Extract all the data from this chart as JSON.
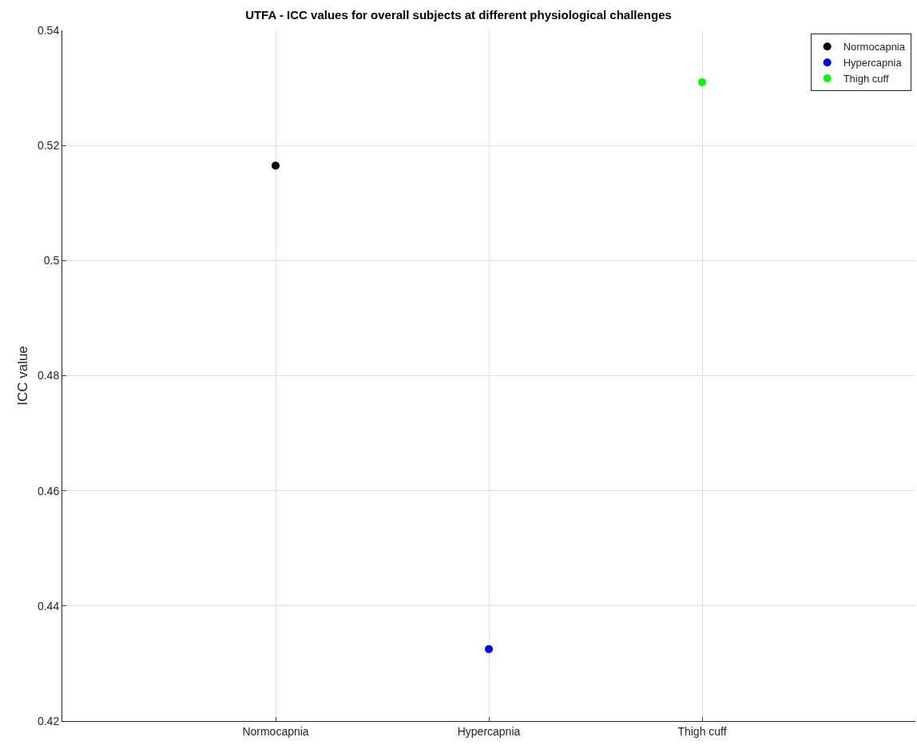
{
  "chart_data": {
    "type": "scatter",
    "title": "UTFA - ICC values for overall subjects at different physiological challenges",
    "ylabel": "ICC value",
    "categories": [
      "Normocapnia",
      "Hypercapnia",
      "Thigh cuff"
    ],
    "series": [
      {
        "name": "Normocapnia",
        "color": "#000000",
        "values": [
          0.5165,
          null,
          null
        ]
      },
      {
        "name": "Hypercapnia",
        "color": "#0000ff",
        "values": [
          null,
          0.4325,
          null
        ]
      },
      {
        "name": "Thigh cuff",
        "color": "#00ff00",
        "values": [
          null,
          null,
          0.531
        ]
      }
    ],
    "ylim": [
      0.42,
      0.54
    ],
    "yticks": [
      0.42,
      0.44,
      0.46,
      0.48,
      0.5,
      0.52,
      0.54
    ],
    "grid": true,
    "legend": "top right",
    "marker": "circle"
  }
}
